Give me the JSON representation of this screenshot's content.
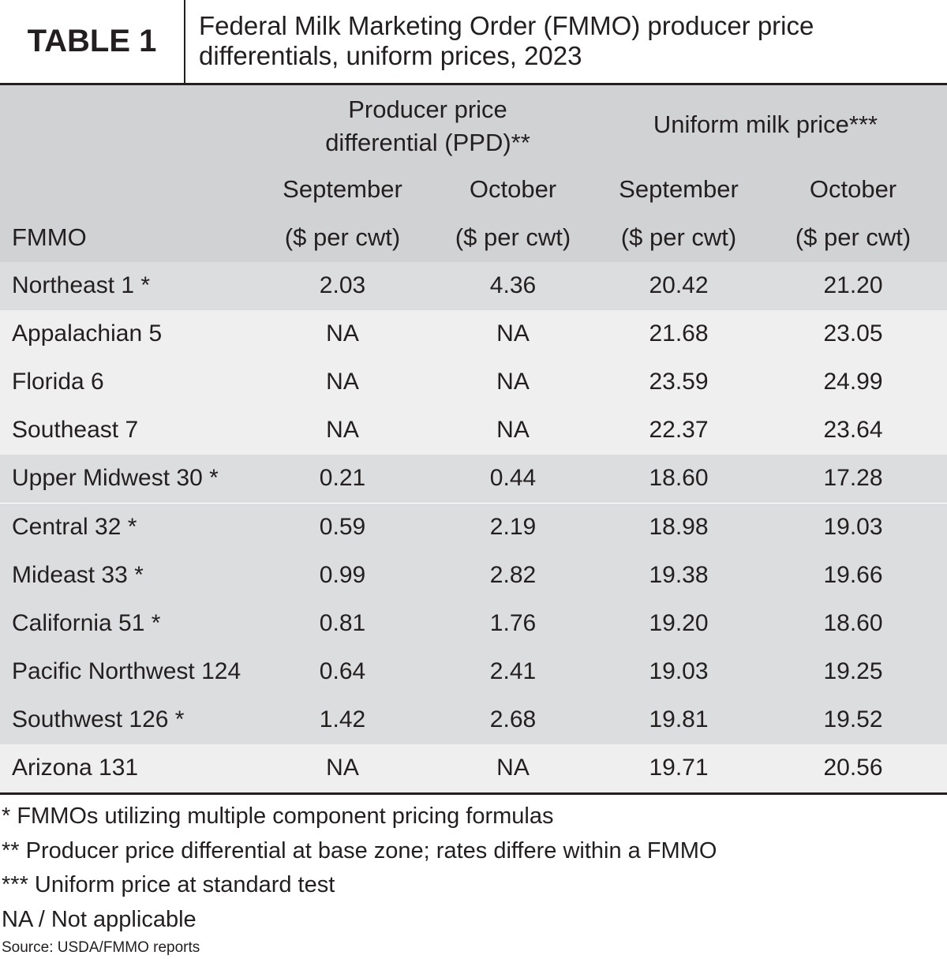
{
  "header": {
    "label": "TABLE 1",
    "title": "Federal Milk Marketing Order (FMMO) producer price differentials, uniform prices, 2023"
  },
  "table": {
    "group_headers": [
      "Producer price differential (PPD)**",
      "Uniform milk price***"
    ],
    "first_column_header": "FMMO",
    "columns": [
      {
        "month": "September",
        "unit": "($ per cwt)"
      },
      {
        "month": "October",
        "unit": "($ per cwt)"
      },
      {
        "month": "September",
        "unit": "($ per cwt)"
      },
      {
        "month": "October",
        "unit": "($ per cwt)"
      }
    ],
    "rows": [
      [
        "Northeast 1 *",
        "2.03",
        "4.36",
        "20.42",
        "21.20"
      ],
      [
        "Appalachian 5",
        "NA",
        "NA",
        "21.68",
        "23.05"
      ],
      [
        "Florida 6",
        "NA",
        "NA",
        "23.59",
        "24.99"
      ],
      [
        "Southeast 7",
        "NA",
        "NA",
        "22.37",
        "23.64"
      ],
      [
        "Upper Midwest 30 *",
        "0.21",
        "0.44",
        "18.60",
        "17.28"
      ],
      [
        "Central 32 *",
        "0.59",
        "2.19",
        "18.98",
        "19.03"
      ],
      [
        "Mideast 33 *",
        "0.99",
        "2.82",
        "19.38",
        "19.66"
      ],
      [
        "California 51 *",
        "0.81",
        "1.76",
        "19.20",
        "18.60"
      ],
      [
        "Pacific Northwest 124",
        "0.64",
        "2.41",
        "19.03",
        "19.25"
      ],
      [
        "Southwest 126 *",
        "1.42",
        "2.68",
        "19.81",
        "19.52"
      ],
      [
        "Arizona 131",
        "NA",
        "NA",
        "19.71",
        "20.56"
      ]
    ]
  },
  "footnotes": [
    "* FMMOs utilizing multiple component pricing formulas",
    "** Producer price differential at base zone; rates differe within a FMMO",
    "*** Uniform price at standard test",
    "NA / Not applicable"
  ],
  "source": "Source: USDA/FMMO reports"
}
